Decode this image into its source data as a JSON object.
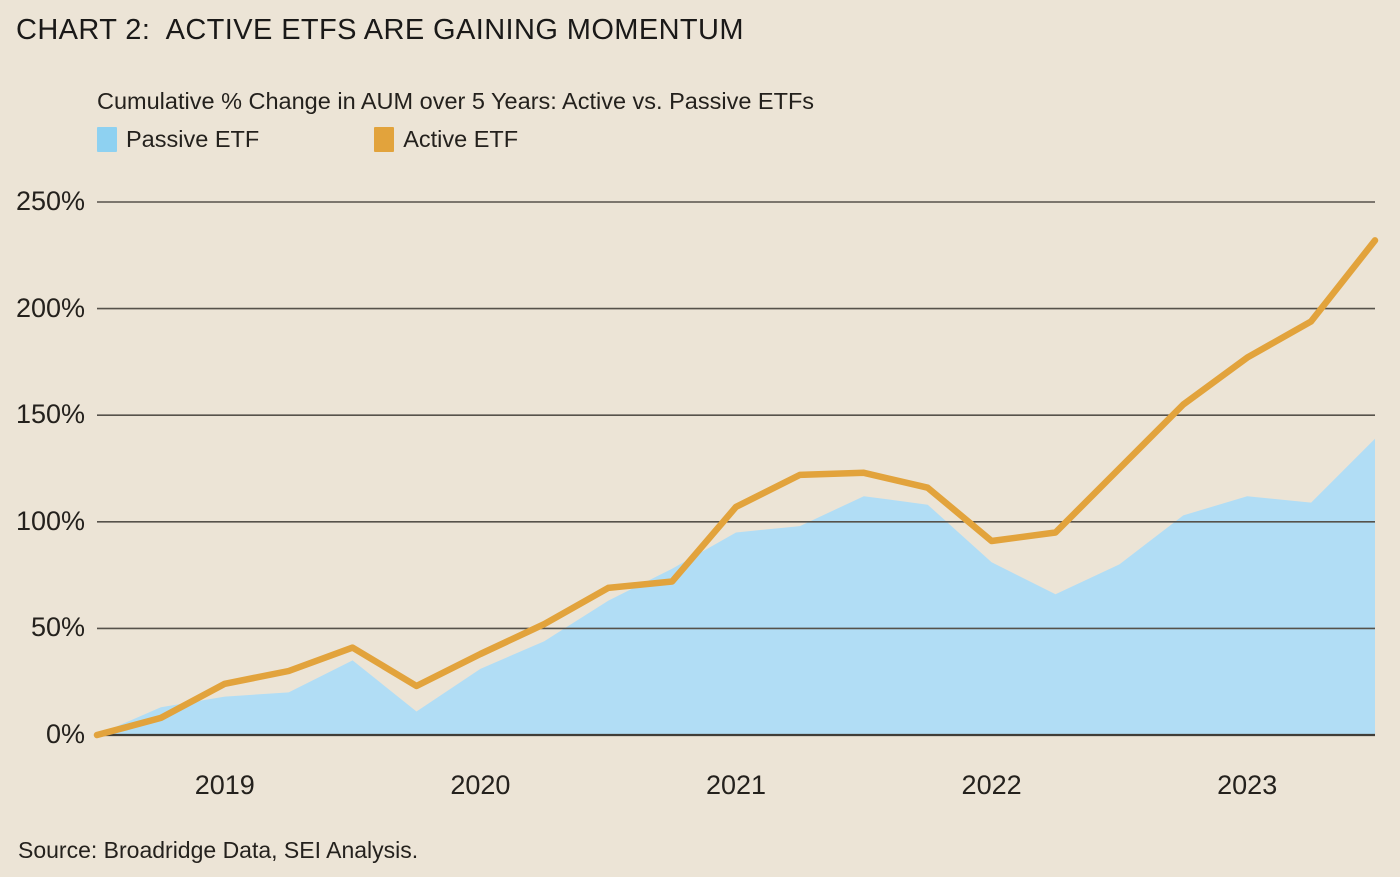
{
  "header": {
    "title": "CHART 2:  ACTIVE ETFS ARE GAINING MOMENTUM"
  },
  "footer": {
    "source": "Source: Broadridge Data, SEI Analysis."
  },
  "colors": {
    "background": "#ECE4D6",
    "passive_swatch": "#8ED1F1",
    "passive_fill": "#B1DDF5",
    "active_line": "#E2A33C",
    "gridline": "#56524B",
    "baseline": "#403D37",
    "text": "#24211D"
  },
  "chart_data": {
    "type": "area",
    "title": "Cumulative % Change in AUM over 5 Years: Active vs. Passive ETFs",
    "xlabel": "",
    "ylabel": "Cumulative % change in AUM",
    "x_unit": "quarters",
    "x_tick_labels": [
      "2019",
      "2020",
      "2021",
      "2022",
      "2023"
    ],
    "x_tick_point_indices": [
      2,
      6,
      10,
      14,
      18
    ],
    "y_ticks": [
      {
        "label": "0%",
        "value": 0
      },
      {
        "label": "50%",
        "value": 50
      },
      {
        "label": "100%",
        "value": 100
      },
      {
        "label": "150%",
        "value": 150
      },
      {
        "label": "200%",
        "value": 200
      },
      {
        "label": "250%",
        "value": 250
      }
    ],
    "ylim": [
      0,
      250
    ],
    "grid": "horizontal",
    "legend_position": "top-left",
    "series": [
      {
        "name": "Passive ETF",
        "type": "area",
        "color": "#8ED1F1",
        "fill": "#B1DDF5",
        "values": [
          0,
          13,
          18,
          20,
          35,
          11,
          31,
          44,
          63,
          78,
          95,
          98,
          112,
          108,
          81,
          66,
          80,
          103,
          112,
          109,
          139
        ]
      },
      {
        "name": "Active ETF",
        "type": "line",
        "color": "#E2A33C",
        "values": [
          0,
          8,
          24,
          30,
          41,
          23,
          38,
          52,
          69,
          72,
          107,
          122,
          123,
          116,
          91,
          95,
          125,
          155,
          177,
          194,
          232
        ]
      }
    ]
  }
}
